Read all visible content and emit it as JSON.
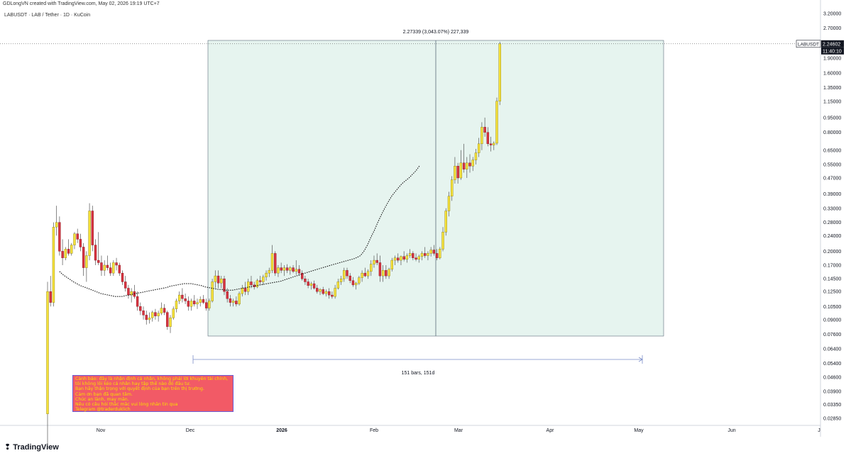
{
  "header": {
    "publisher": "GDLongVN created with TradingView.com, May 02, 2026 19:19 UTC+7",
    "symbol_title": "LABUSDT · LAB / Tether · 1D · KuCoin",
    "logo_text": "TradingView"
  },
  "colors": {
    "up": "#f5e13a",
    "down": "#d6323f",
    "wick": "#555555",
    "ma": "#111111",
    "measure_fill": "#e6f4ef",
    "measure_line": "#5a6b78",
    "range_line": "#7a8cc8",
    "note_bg": "#f25a66",
    "note_text": "#f7e000",
    "price_tag_bg": "#131722"
  },
  "measure": {
    "label": "2.27339 (3,043.07%) 227,339",
    "range_label": "151 bars, 151d"
  },
  "price_tag": {
    "symbol": "LABUSDT",
    "price": "2.24602",
    "countdown": "11:40:10"
  },
  "note": {
    "lines": [
      "Cảnh báo: đây là nhận định cá nhân, không phải lời khuyên tài chính,",
      "tôi không lôi kéo cá nhân hay tập thể nào đó đầu tư.",
      "Bạn hãy thận trọng với quyết định của bạn trên thị trường.",
      "Cảm ơn bạn đã quan tâm.",
      "Chúc an lành, may mắn.",
      "Nếu có câu hỏi thắc mắc vui lòng nhắn tin qua",
      "Telegram @traderduklich"
    ]
  },
  "chart_data": {
    "type": "candlestick",
    "symbol": "LABUSDT",
    "timeframe": "1D",
    "scale": "log",
    "y_axis_ticks": [
      "3.20000",
      "2.70000",
      "2.24602",
      "1.90000",
      "1.60000",
      "1.35000",
      "1.15000",
      "0.95000",
      "0.80000",
      "0.65000",
      "0.55000",
      "0.47000",
      "0.39000",
      "0.33000",
      "0.28000",
      "0.24000",
      "0.20000",
      "0.17000",
      "0.14500",
      "0.12500",
      "0.10500",
      "0.09000",
      "0.07600",
      "0.06400",
      "0.05400",
      "0.04600",
      "0.03900",
      "0.03350",
      "0.02850"
    ],
    "x_axis_ticks": [
      "Nov",
      "Dec",
      "2026",
      "Feb",
      "Mar",
      "Apr",
      "May",
      "Jun",
      "J"
    ],
    "ohlc": [
      [
        0.03,
        0.14,
        0.02,
        0.125
      ],
      [
        0.125,
        0.15,
        0.105,
        0.11
      ],
      [
        0.11,
        0.28,
        0.105,
        0.265
      ],
      [
        0.265,
        0.34,
        0.24,
        0.28
      ],
      [
        0.28,
        0.3,
        0.19,
        0.2
      ],
      [
        0.2,
        0.23,
        0.17,
        0.185
      ],
      [
        0.185,
        0.21,
        0.18,
        0.205
      ],
      [
        0.205,
        0.23,
        0.19,
        0.195
      ],
      [
        0.195,
        0.22,
        0.19,
        0.215
      ],
      [
        0.215,
        0.25,
        0.205,
        0.245
      ],
      [
        0.245,
        0.26,
        0.22,
        0.23
      ],
      [
        0.23,
        0.245,
        0.2,
        0.21
      ],
      [
        0.21,
        0.22,
        0.15,
        0.165
      ],
      [
        0.165,
        0.2,
        0.14,
        0.19
      ],
      [
        0.19,
        0.35,
        0.18,
        0.32
      ],
      [
        0.32,
        0.34,
        0.2,
        0.215
      ],
      [
        0.215,
        0.23,
        0.17,
        0.18
      ],
      [
        0.18,
        0.25,
        0.17,
        0.175
      ],
      [
        0.175,
        0.19,
        0.15,
        0.16
      ],
      [
        0.16,
        0.18,
        0.15,
        0.17
      ],
      [
        0.17,
        0.19,
        0.16,
        0.165
      ],
      [
        0.165,
        0.175,
        0.15,
        0.155
      ],
      [
        0.155,
        0.18,
        0.15,
        0.175
      ],
      [
        0.175,
        0.185,
        0.16,
        0.17
      ],
      [
        0.17,
        0.175,
        0.15,
        0.155
      ],
      [
        0.155,
        0.16,
        0.135,
        0.14
      ],
      [
        0.14,
        0.15,
        0.125,
        0.13
      ],
      [
        0.13,
        0.135,
        0.115,
        0.12
      ],
      [
        0.12,
        0.13,
        0.11,
        0.125
      ],
      [
        0.125,
        0.135,
        0.115,
        0.118
      ],
      [
        0.118,
        0.125,
        0.1,
        0.105
      ],
      [
        0.105,
        0.11,
        0.095,
        0.1
      ],
      [
        0.1,
        0.105,
        0.09,
        0.095
      ],
      [
        0.095,
        0.1,
        0.085,
        0.09
      ],
      [
        0.09,
        0.098,
        0.086,
        0.092
      ],
      [
        0.092,
        0.1,
        0.088,
        0.098
      ],
      [
        0.098,
        0.102,
        0.09,
        0.094
      ],
      [
        0.094,
        0.1,
        0.088,
        0.097
      ],
      [
        0.097,
        0.11,
        0.095,
        0.103
      ],
      [
        0.103,
        0.108,
        0.095,
        0.098
      ],
      [
        0.098,
        0.1,
        0.08,
        0.083
      ],
      [
        0.083,
        0.095,
        0.077,
        0.092
      ],
      [
        0.092,
        0.105,
        0.09,
        0.102
      ],
      [
        0.102,
        0.115,
        0.098,
        0.112
      ],
      [
        0.112,
        0.125,
        0.108,
        0.12
      ],
      [
        0.12,
        0.13,
        0.11,
        0.115
      ],
      [
        0.115,
        0.122,
        0.108,
        0.112
      ],
      [
        0.112,
        0.118,
        0.1,
        0.105
      ],
      [
        0.105,
        0.115,
        0.1,
        0.112
      ],
      [
        0.112,
        0.12,
        0.105,
        0.108
      ],
      [
        0.108,
        0.115,
        0.102,
        0.11
      ],
      [
        0.11,
        0.118,
        0.105,
        0.114
      ],
      [
        0.114,
        0.12,
        0.108,
        0.11
      ],
      [
        0.11,
        0.115,
        0.1,
        0.103
      ],
      [
        0.103,
        0.115,
        0.1,
        0.112
      ],
      [
        0.112,
        0.145,
        0.11,
        0.14
      ],
      [
        0.14,
        0.16,
        0.13,
        0.15
      ],
      [
        0.15,
        0.16,
        0.13,
        0.138
      ],
      [
        0.138,
        0.15,
        0.13,
        0.145
      ],
      [
        0.145,
        0.15,
        0.12,
        0.125
      ],
      [
        0.125,
        0.13,
        0.11,
        0.115
      ],
      [
        0.115,
        0.12,
        0.105,
        0.11
      ],
      [
        0.11,
        0.115,
        0.105,
        0.112
      ],
      [
        0.112,
        0.118,
        0.105,
        0.108
      ],
      [
        0.108,
        0.125,
        0.106,
        0.122
      ],
      [
        0.122,
        0.135,
        0.118,
        0.13
      ],
      [
        0.13,
        0.14,
        0.12,
        0.125
      ],
      [
        0.125,
        0.145,
        0.12,
        0.14
      ],
      [
        0.14,
        0.15,
        0.13,
        0.135
      ],
      [
        0.135,
        0.14,
        0.128,
        0.132
      ],
      [
        0.132,
        0.145,
        0.13,
        0.142
      ],
      [
        0.142,
        0.15,
        0.135,
        0.14
      ],
      [
        0.14,
        0.152,
        0.135,
        0.148
      ],
      [
        0.148,
        0.16,
        0.142,
        0.155
      ],
      [
        0.155,
        0.165,
        0.148,
        0.16
      ],
      [
        0.16,
        0.215,
        0.155,
        0.195
      ],
      [
        0.195,
        0.2,
        0.15,
        0.155
      ],
      [
        0.155,
        0.17,
        0.148,
        0.165
      ],
      [
        0.165,
        0.175,
        0.155,
        0.16
      ],
      [
        0.16,
        0.17,
        0.15,
        0.165
      ],
      [
        0.165,
        0.172,
        0.155,
        0.16
      ],
      [
        0.16,
        0.168,
        0.152,
        0.165
      ],
      [
        0.165,
        0.17,
        0.155,
        0.158
      ],
      [
        0.158,
        0.18,
        0.152,
        0.162
      ],
      [
        0.162,
        0.17,
        0.15,
        0.155
      ],
      [
        0.155,
        0.16,
        0.142,
        0.145
      ],
      [
        0.145,
        0.15,
        0.135,
        0.14
      ],
      [
        0.14,
        0.145,
        0.13,
        0.134
      ],
      [
        0.134,
        0.14,
        0.128,
        0.137
      ],
      [
        0.137,
        0.142,
        0.128,
        0.13
      ],
      [
        0.13,
        0.135,
        0.122,
        0.125
      ],
      [
        0.125,
        0.13,
        0.12,
        0.128
      ],
      [
        0.128,
        0.132,
        0.12,
        0.122
      ],
      [
        0.122,
        0.128,
        0.118,
        0.125
      ],
      [
        0.125,
        0.13,
        0.115,
        0.12
      ],
      [
        0.12,
        0.125,
        0.115,
        0.118
      ],
      [
        0.118,
        0.135,
        0.115,
        0.13
      ],
      [
        0.13,
        0.145,
        0.128,
        0.14
      ],
      [
        0.14,
        0.15,
        0.135,
        0.145
      ],
      [
        0.145,
        0.165,
        0.14,
        0.16
      ],
      [
        0.16,
        0.165,
        0.145,
        0.15
      ],
      [
        0.15,
        0.155,
        0.138,
        0.142
      ],
      [
        0.142,
        0.148,
        0.132,
        0.135
      ],
      [
        0.135,
        0.14,
        0.128,
        0.138
      ],
      [
        0.138,
        0.15,
        0.135,
        0.147
      ],
      [
        0.147,
        0.16,
        0.14,
        0.155
      ],
      [
        0.155,
        0.165,
        0.148,
        0.15
      ],
      [
        0.15,
        0.162,
        0.145,
        0.158
      ],
      [
        0.158,
        0.18,
        0.15,
        0.172
      ],
      [
        0.172,
        0.19,
        0.165,
        0.18
      ],
      [
        0.18,
        0.195,
        0.17,
        0.175
      ],
      [
        0.175,
        0.19,
        0.14,
        0.15
      ],
      [
        0.15,
        0.17,
        0.14,
        0.16
      ],
      [
        0.16,
        0.17,
        0.145,
        0.15
      ],
      [
        0.15,
        0.165,
        0.145,
        0.162
      ],
      [
        0.162,
        0.185,
        0.158,
        0.18
      ],
      [
        0.18,
        0.19,
        0.17,
        0.185
      ],
      [
        0.185,
        0.195,
        0.175,
        0.18
      ],
      [
        0.18,
        0.19,
        0.17,
        0.188
      ],
      [
        0.188,
        0.2,
        0.178,
        0.182
      ],
      [
        0.182,
        0.195,
        0.175,
        0.19
      ],
      [
        0.19,
        0.205,
        0.185,
        0.195
      ],
      [
        0.195,
        0.2,
        0.18,
        0.185
      ],
      [
        0.185,
        0.195,
        0.178,
        0.182
      ],
      [
        0.182,
        0.192,
        0.175,
        0.188
      ],
      [
        0.188,
        0.2,
        0.18,
        0.195
      ],
      [
        0.195,
        0.21,
        0.185,
        0.19
      ],
      [
        0.19,
        0.2,
        0.18,
        0.195
      ],
      [
        0.195,
        0.21,
        0.188,
        0.203
      ],
      [
        0.203,
        0.215,
        0.19,
        0.195
      ],
      [
        0.195,
        0.205,
        0.18,
        0.185
      ],
      [
        0.185,
        0.21,
        0.182,
        0.205
      ],
      [
        0.205,
        0.265,
        0.2,
        0.25
      ],
      [
        0.25,
        0.33,
        0.24,
        0.32
      ],
      [
        0.32,
        0.4,
        0.3,
        0.38
      ],
      [
        0.38,
        0.48,
        0.36,
        0.46
      ],
      [
        0.46,
        0.6,
        0.44,
        0.54
      ],
      [
        0.54,
        0.56,
        0.44,
        0.47
      ],
      [
        0.47,
        0.65,
        0.46,
        0.56
      ],
      [
        0.56,
        0.7,
        0.5,
        0.52
      ],
      [
        0.52,
        0.6,
        0.47,
        0.56
      ],
      [
        0.56,
        0.62,
        0.5,
        0.54
      ],
      [
        0.54,
        0.6,
        0.51,
        0.58
      ],
      [
        0.58,
        0.66,
        0.55,
        0.63
      ],
      [
        0.63,
        0.75,
        0.6,
        0.7
      ],
      [
        0.7,
        0.9,
        0.65,
        0.85
      ],
      [
        0.85,
        0.95,
        0.76,
        0.8
      ],
      [
        0.8,
        0.85,
        0.68,
        0.7
      ],
      [
        0.7,
        0.76,
        0.64,
        0.69
      ],
      [
        0.69,
        0.72,
        0.65,
        0.705
      ],
      [
        0.705,
        1.2,
        0.69,
        1.15
      ],
      [
        1.15,
        2.3,
        1.1,
        2.246
      ]
    ],
    "ma_series": {
      "start_index": 40,
      "values": [
        0.158,
        0.152,
        0.148,
        0.144,
        0.14,
        0.137,
        0.134,
        0.132,
        0.13,
        0.128,
        0.126,
        0.124,
        0.122,
        0.121,
        0.12,
        0.119,
        0.118,
        0.118,
        0.118,
        0.119,
        0.12,
        0.121,
        0.122,
        0.123,
        0.124,
        0.125,
        0.126,
        0.127,
        0.128,
        0.129,
        0.13,
        0.131,
        0.133,
        0.134,
        0.135,
        0.136,
        0.137,
        0.137,
        0.137,
        0.136,
        0.135,
        0.134,
        0.132,
        0.131,
        0.13,
        0.129,
        0.128,
        0.128,
        0.127,
        0.127,
        0.127,
        0.128,
        0.129,
        0.13,
        0.131,
        0.132,
        0.133,
        0.134,
        0.135,
        0.136,
        0.137,
        0.138,
        0.139,
        0.14,
        0.141,
        0.143,
        0.145,
        0.147,
        0.149,
        0.151,
        0.153,
        0.155,
        0.157,
        0.159,
        0.161,
        0.163,
        0.165,
        0.167,
        0.169,
        0.171,
        0.173,
        0.175,
        0.177,
        0.179,
        0.181,
        0.183,
        0.186,
        0.19,
        0.2,
        0.215,
        0.235,
        0.255,
        0.28,
        0.305,
        0.33,
        0.355,
        0.38,
        0.4,
        0.42,
        0.44,
        0.455,
        0.47,
        0.49,
        0.51,
        0.54
      ]
    },
    "measure_range": {
      "from_index": 40,
      "to_index": 191,
      "low": 0.075,
      "high": 2.3
    }
  }
}
